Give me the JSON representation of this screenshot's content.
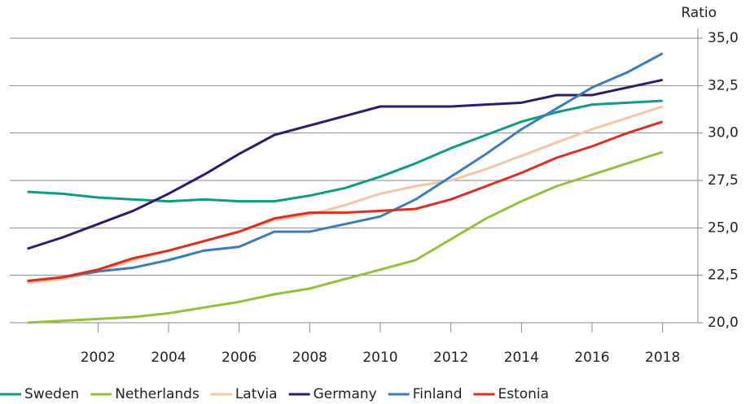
{
  "chart_data": {
    "type": "line",
    "y_axis_label": "Ratio",
    "x": [
      2000,
      2001,
      2002,
      2003,
      2004,
      2005,
      2006,
      2007,
      2008,
      2009,
      2010,
      2011,
      2012,
      2013,
      2014,
      2015,
      2016,
      2017,
      2018
    ],
    "xlim": [
      1999.5,
      2019
    ],
    "xticks": [
      2002,
      2004,
      2006,
      2008,
      2010,
      2012,
      2014,
      2016,
      2018
    ],
    "ylim": [
      20,
      35
    ],
    "yticks": [
      {
        "value": 20,
        "label": "20,0"
      },
      {
        "value": 22.5,
        "label": "22,5"
      },
      {
        "value": 25,
        "label": "25,0"
      },
      {
        "value": 27.5,
        "label": "27,5"
      },
      {
        "value": 30,
        "label": "30,0"
      },
      {
        "value": 32.5,
        "label": "32,5"
      },
      {
        "value": 35,
        "label": "35,0"
      }
    ],
    "grid": true,
    "series": [
      {
        "name": "Sweden",
        "color": "#0e9c84",
        "values": [
          26.9,
          26.8,
          26.6,
          26.5,
          26.4,
          26.5,
          26.4,
          26.4,
          26.7,
          27.1,
          27.7,
          28.4,
          29.2,
          29.9,
          30.6,
          31.1,
          31.5,
          31.6,
          31.7
        ]
      },
      {
        "name": "Netherlands",
        "color": "#94c13c",
        "values": [
          20.0,
          20.1,
          20.2,
          20.3,
          20.5,
          20.8,
          21.1,
          21.5,
          21.8,
          22.3,
          22.8,
          23.3,
          24.4,
          25.5,
          26.4,
          27.2,
          27.8,
          28.4,
          29.0
        ]
      },
      {
        "name": "Latvia",
        "color": "#f7c4a5",
        "values": [
          22.1,
          22.3,
          22.7,
          23.3,
          23.8,
          24.3,
          24.8,
          25.4,
          25.7,
          26.2,
          26.8,
          27.2,
          27.5,
          28.1,
          28.8,
          29.5,
          30.2,
          30.8,
          31.4
        ]
      },
      {
        "name": "Germany",
        "color": "#2e1a6e",
        "values": [
          23.9,
          24.5,
          25.2,
          25.9,
          26.8,
          27.8,
          28.9,
          29.9,
          30.4,
          30.9,
          31.4,
          31.4,
          31.4,
          31.5,
          31.6,
          32.0,
          32.0,
          32.4,
          32.8
        ]
      },
      {
        "name": "Finland",
        "color": "#3a7dbf",
        "values": [
          22.2,
          22.4,
          22.7,
          22.9,
          23.3,
          23.8,
          24.0,
          24.8,
          24.8,
          25.2,
          25.6,
          26.5,
          27.7,
          28.9,
          30.2,
          31.3,
          32.4,
          33.2,
          34.2
        ]
      },
      {
        "name": "Estonia",
        "color": "#dd2f1e",
        "values": [
          22.2,
          22.4,
          22.8,
          23.4,
          23.8,
          24.3,
          24.8,
          25.5,
          25.8,
          25.8,
          25.9,
          26.0,
          26.5,
          27.2,
          27.9,
          28.7,
          29.3,
          30.0,
          30.6
        ]
      }
    ]
  }
}
